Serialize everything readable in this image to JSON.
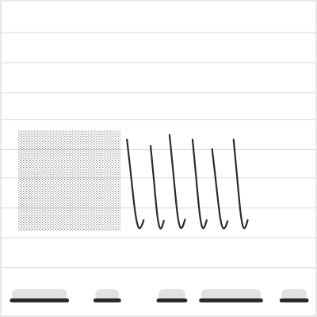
{
  "chart_data": {
    "type": "spectrogram",
    "xlim": [
      0,
      10
    ],
    "ylim": [
      0,
      10
    ],
    "yticks": [
      1.55,
      2.5,
      3.45,
      4.4,
      5.3,
      6.25,
      7.1,
      8.05,
      9.0
    ],
    "grid": true,
    "tick_labels": false,
    "color": "#2b2b2b",
    "noise": {
      "x_start": 0.55,
      "x_end": 3.8,
      "f_low": 2.7,
      "f_high": 5.9
    },
    "notes": {
      "x_start": [
        4.0,
        4.75,
        5.35,
        6.08,
        6.7,
        7.38
      ],
      "x_end": [
        4.38,
        5.05,
        5.7,
        6.4,
        7.05,
        7.7
      ],
      "f_high": [
        5.6,
        5.4,
        5.75,
        5.6,
        5.3,
        5.6
      ],
      "f_low": [
        2.7,
        2.7,
        2.7,
        2.7,
        2.7,
        2.7
      ]
    },
    "bands": {
      "x_start": [
        0.35,
        3.0,
        5.0,
        6.35,
        8.9
      ],
      "x_end": [
        2.1,
        3.75,
        5.85,
        8.25,
        9.7
      ],
      "f": [
        0.5,
        0.5,
        0.5,
        0.5,
        0.5
      ]
    }
  }
}
